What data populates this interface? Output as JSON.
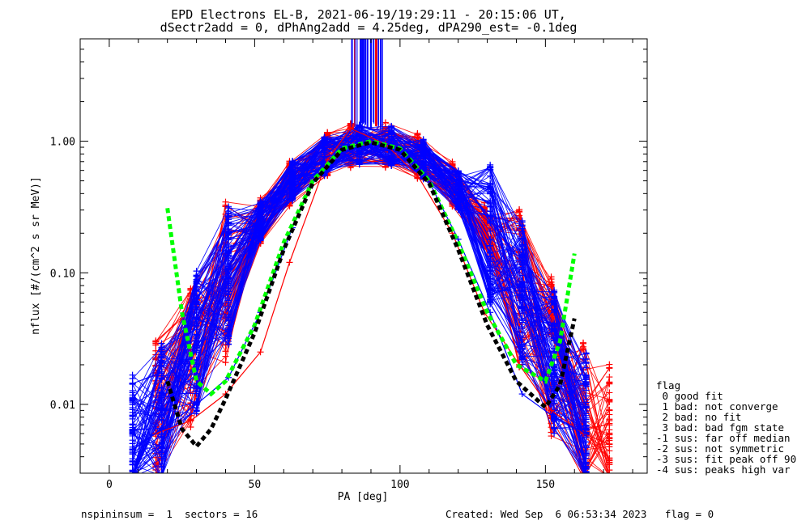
{
  "chart_data": {
    "type": "line",
    "title_line1": "EPD Electrons EL-B, 2021-06-19/19:29:11 - 20:15:06 UT,",
    "title_line2": "dSectr2add = 0, dPhAng2add = 4.25deg, dPA290_est=  -0.1deg",
    "xlabel": "PA [deg]",
    "ylabel": "nflux [#/(cm^2 s sr MeV)]",
    "xlim": [
      -10,
      185
    ],
    "ylim": [
      0.003,
      6.0
    ],
    "yscale": "log",
    "x_ticks": [
      {
        "v": 0,
        "label": "0"
      },
      {
        "v": 50,
        "label": "50"
      },
      {
        "v": 100,
        "label": "100"
      },
      {
        "v": 150,
        "label": "150"
      }
    ],
    "y_ticks": [
      {
        "v": 0.01,
        "label": "0.01"
      },
      {
        "v": 0.1,
        "label": "0.10"
      },
      {
        "v": 1.0,
        "label": "1.00"
      }
    ],
    "colors": {
      "series_red": "#ff0000",
      "series_blue": "#0000ff",
      "fit_green": "#00ff00",
      "fit_black": "#000000"
    },
    "series": [
      {
        "color": "red",
        "x": [
          16,
          28,
          40,
          52,
          62,
          75,
          83,
          95,
          106,
          118,
          129,
          141,
          152,
          163,
          172
        ],
        "y": [
          0.006,
          0.0075,
          0.012,
          0.025,
          0.12,
          0.72,
          1.25,
          0.95,
          0.55,
          0.2,
          0.05,
          0.02,
          0.009,
          0.006,
          0.005
        ]
      },
      {
        "color": "blue",
        "x": [
          8,
          18,
          30,
          41,
          52,
          63,
          74,
          86,
          97,
          108,
          120,
          131,
          142,
          153,
          164
        ],
        "y": [
          0.0045,
          0.0065,
          0.01,
          0.016,
          0.05,
          0.22,
          0.75,
          0.9,
          0.95,
          0.6,
          0.18,
          0.05,
          0.012,
          0.008,
          0.006
        ]
      },
      {
        "color": "green",
        "x": [
          20,
          25,
          30,
          35,
          40,
          50,
          60,
          70,
          80,
          90,
          100,
          110,
          120,
          130,
          140,
          150,
          155,
          160
        ],
        "y": [
          0.31,
          0.05,
          0.015,
          0.012,
          0.015,
          0.04,
          0.17,
          0.5,
          0.88,
          1.0,
          0.88,
          0.5,
          0.17,
          0.05,
          0.02,
          0.015,
          0.03,
          0.14
        ]
      },
      {
        "color": "black",
        "x": [
          20,
          25,
          30,
          35,
          40,
          50,
          60,
          70,
          80,
          90,
          100,
          110,
          120,
          130,
          140,
          150,
          155,
          160
        ],
        "y": [
          0.015,
          0.0065,
          0.0048,
          0.0065,
          0.011,
          0.035,
          0.15,
          0.48,
          0.86,
          0.98,
          0.86,
          0.48,
          0.15,
          0.04,
          0.015,
          0.0095,
          0.014,
          0.045
        ]
      }
    ]
  },
  "legend": {
    "title": "flag",
    "items": [
      " 0 good fit",
      " 1 bad: not converge",
      " 2 bad: no fit",
      " 3 bad: bad fgm state",
      "-1 sus: far off median",
      "-2 sus: not symmetric",
      "-3 sus: fit peak off 90",
      "-4 sus: peaks high var"
    ]
  },
  "footer": {
    "left": "nspininsum =  1  sectors = 16",
    "right": "Created: Wed Sep  6 06:53:34 2023   flag = 0"
  }
}
